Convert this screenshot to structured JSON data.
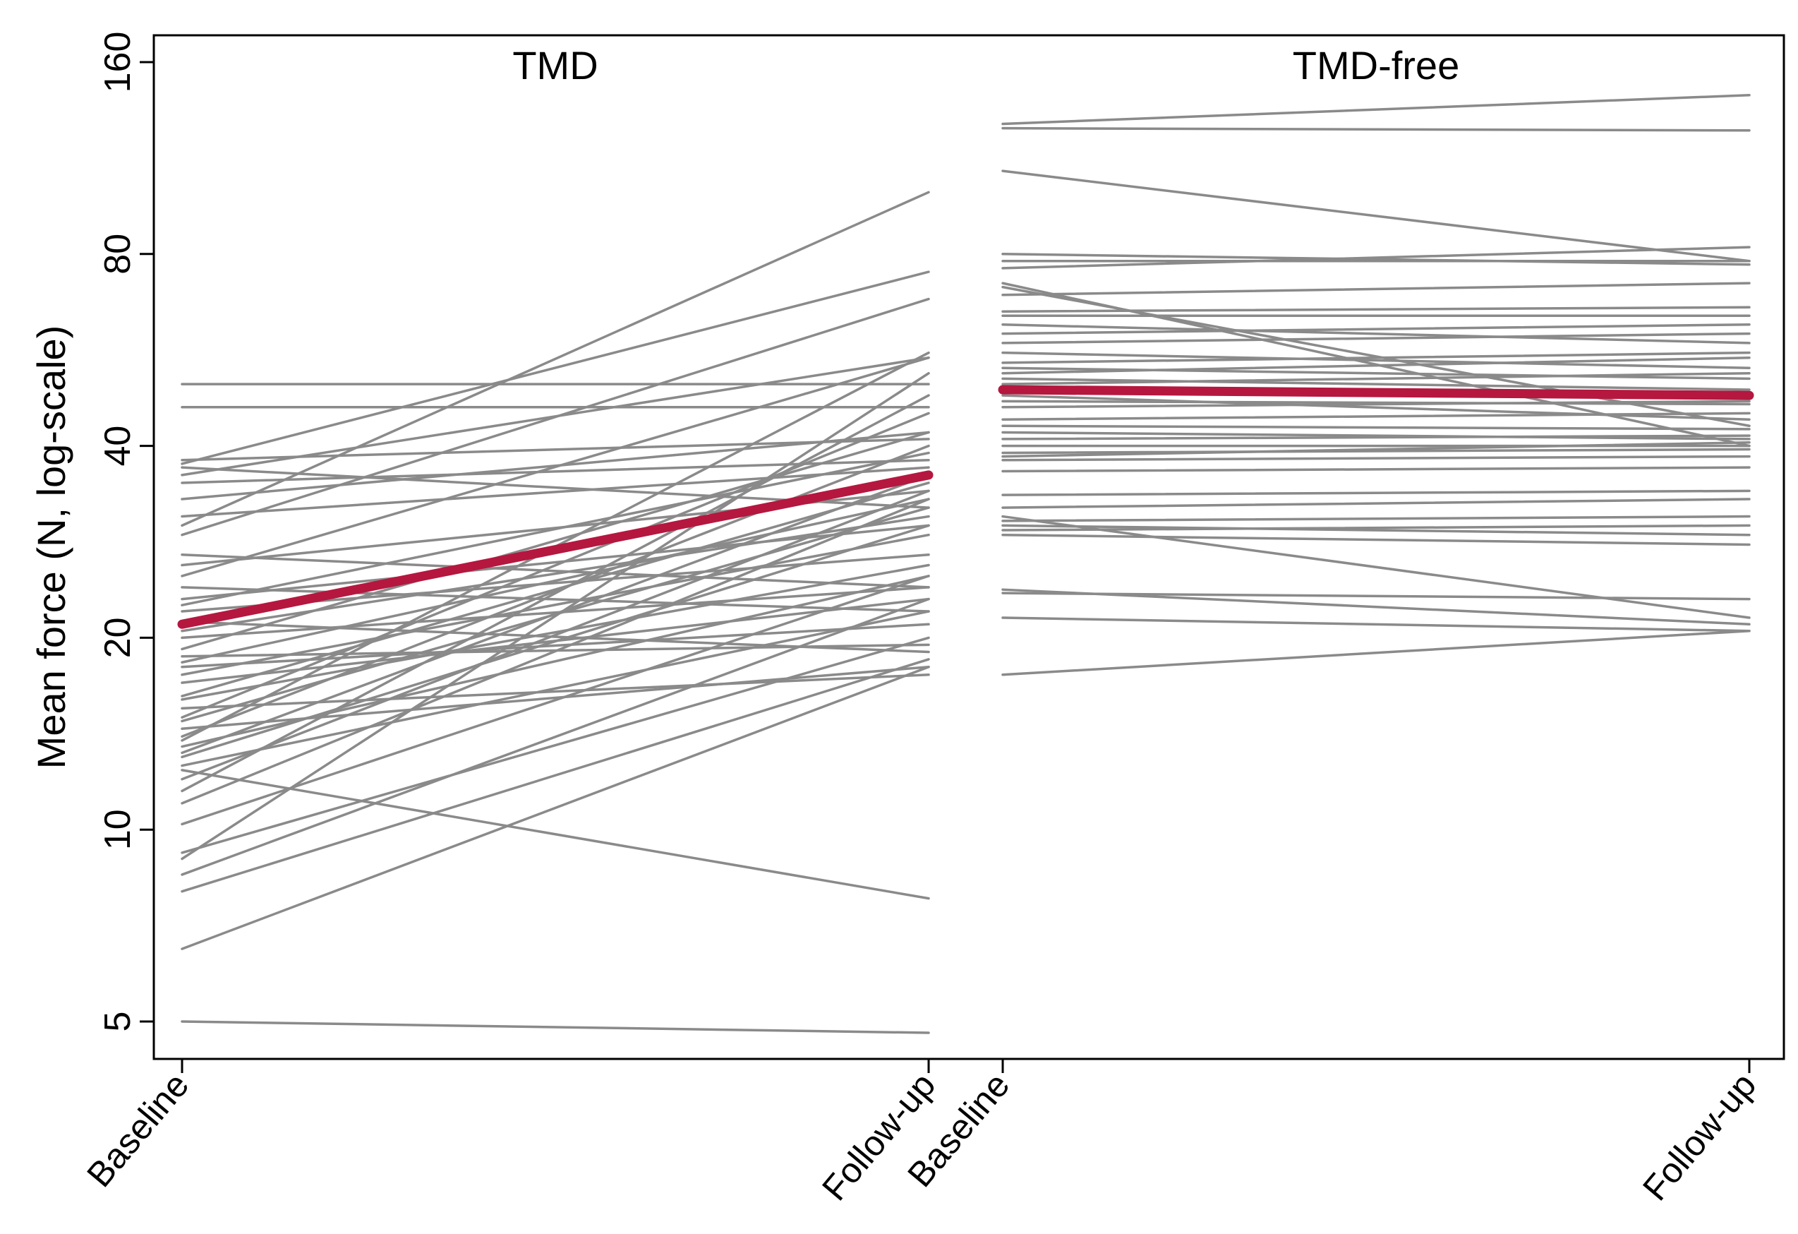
{
  "chart_data": {
    "type": "line",
    "ylabel": "Mean force (N, log-scale)",
    "yscale": "log",
    "ylim": [
      4.5,
      165
    ],
    "yticks": [
      {
        "value": 5,
        "label": "5"
      },
      {
        "value": 10,
        "label": "10"
      },
      {
        "value": 20,
        "label": "20"
      },
      {
        "value": 40,
        "label": "40"
      },
      {
        "value": 80,
        "label": "80"
      },
      {
        "value": 160,
        "label": "160"
      }
    ],
    "mean_color": "#b5173f",
    "line_color": "#8a8a8a",
    "groups": [
      {
        "title": "TMD",
        "categories": [
          "Baseline",
          "Follow-up"
        ],
        "mean": [
          21.0,
          36.0
        ],
        "subjects": [
          [
            5.0,
            4.8
          ],
          [
            6.5,
            18.0
          ],
          [
            8.0,
            18.5
          ],
          [
            8.5,
            23.0
          ],
          [
            9.0,
            52.0
          ],
          [
            9.2,
            20.0
          ],
          [
            10.2,
            25.0
          ],
          [
            11.0,
            33.0
          ],
          [
            11.5,
            48.0
          ],
          [
            12.0,
            34.0
          ],
          [
            12.4,
            7.8
          ],
          [
            12.6,
            22.0
          ],
          [
            13.0,
            30.0
          ],
          [
            13.2,
            36.0
          ],
          [
            13.5,
            25.0
          ],
          [
            13.8,
            56.0
          ],
          [
            14.0,
            40.0
          ],
          [
            14.4,
            18.0
          ],
          [
            14.8,
            32.0
          ],
          [
            15.0,
            45.0
          ],
          [
            15.5,
            17.5
          ],
          [
            16.0,
            26.0
          ],
          [
            16.2,
            35.0
          ],
          [
            17.0,
            23.0
          ],
          [
            17.5,
            29.0
          ],
          [
            18.0,
            21.0
          ],
          [
            18.3,
            33.0
          ],
          [
            18.7,
            19.5
          ],
          [
            19.2,
            42.0
          ],
          [
            20.0,
            24.0
          ],
          [
            20.5,
            31.0
          ],
          [
            21.2,
            19.0
          ],
          [
            22.0,
            27.0
          ],
          [
            22.5,
            39.0
          ],
          [
            23.0,
            30.0
          ],
          [
            24.0,
            22.0
          ],
          [
            25.0,
            55.0
          ],
          [
            26.0,
            34.0
          ],
          [
            27.0,
            24.0
          ],
          [
            29.0,
            68.0
          ],
          [
            31.0,
            37.0
          ],
          [
            33.0,
            42.0
          ],
          [
            35.0,
            38.0
          ],
          [
            36.0,
            55.0
          ],
          [
            37.0,
            32.0
          ],
          [
            37.5,
            75.0
          ],
          [
            38.0,
            41.0
          ],
          [
            46.0,
            46.0
          ],
          [
            50.0,
            50.0
          ],
          [
            30.0,
            100.0
          ]
        ]
      },
      {
        "title": "TMD-free",
        "categories": [
          "Baseline",
          "Follow-up"
        ],
        "mean": [
          49.0,
          48.0
        ],
        "subjects": [
          [
            17.5,
            20.5
          ],
          [
            21.5,
            20.5
          ],
          [
            23.5,
            23.0
          ],
          [
            23.8,
            21.0
          ],
          [
            29.0,
            28.0
          ],
          [
            29.5,
            30.0
          ],
          [
            30.0,
            29.0
          ],
          [
            30.5,
            31.0
          ],
          [
            31.0,
            21.5
          ],
          [
            32.0,
            33.0
          ],
          [
            33.5,
            34.0
          ],
          [
            36.5,
            37.0
          ],
          [
            38.0,
            38.5
          ],
          [
            38.5,
            40.5
          ],
          [
            39.0,
            39.5
          ],
          [
            40.0,
            40.0
          ],
          [
            41.0,
            41.5
          ],
          [
            42.0,
            41.0
          ],
          [
            43.0,
            42.5
          ],
          [
            44.0,
            45.0
          ],
          [
            46.0,
            47.0
          ],
          [
            47.0,
            46.5
          ],
          [
            48.0,
            44.0
          ],
          [
            50.0,
            52.0
          ],
          [
            51.0,
            49.0
          ],
          [
            52.0,
            55.0
          ],
          [
            53.0,
            51.0
          ],
          [
            54.0,
            56.0
          ],
          [
            56.0,
            53.0
          ],
          [
            58.0,
            60.0
          ],
          [
            60.0,
            62.0
          ],
          [
            62.0,
            58.0
          ],
          [
            64.0,
            64.0
          ],
          [
            65.0,
            66.0
          ],
          [
            69.0,
            72.0
          ],
          [
            71.0,
            43.0
          ],
          [
            72.0,
            40.0
          ],
          [
            76.0,
            82.0
          ],
          [
            78.0,
            78.0
          ],
          [
            80.0,
            77.0
          ],
          [
            108.0,
            78.0
          ],
          [
            126.0,
            125.0
          ],
          [
            128.0,
            142.0
          ]
        ]
      }
    ]
  }
}
